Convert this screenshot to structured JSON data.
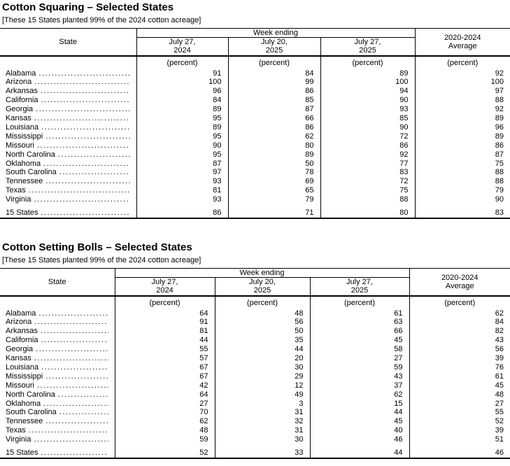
{
  "page": {
    "background_color": "#ffffff",
    "text_color": "#000000"
  },
  "tables": [
    {
      "title": "Cotton Squaring – Selected States",
      "note": "[These 15 States planted 99% of the 2024 cotton acreage]",
      "state_header": "State",
      "group_header": "Week ending",
      "columns": [
        "July 27,\n2024",
        "July 20,\n2025",
        "July 27,\n2025"
      ],
      "avg_header": "2020-2024\nAverage",
      "unit": "(percent)",
      "rows": [
        {
          "state": "Alabama",
          "values": [
            91,
            84,
            89,
            92
          ]
        },
        {
          "state": "Arizona",
          "values": [
            100,
            99,
            100,
            100
          ]
        },
        {
          "state": "Arkansas",
          "values": [
            96,
            86,
            94,
            97
          ]
        },
        {
          "state": "California",
          "values": [
            84,
            85,
            90,
            88
          ]
        },
        {
          "state": "Georgia",
          "values": [
            89,
            87,
            93,
            92
          ]
        },
        {
          "state": "Kansas",
          "values": [
            95,
            66,
            85,
            89
          ]
        },
        {
          "state": "Louisiana",
          "values": [
            89,
            86,
            90,
            96
          ]
        },
        {
          "state": "Mississippi",
          "values": [
            95,
            62,
            72,
            89
          ]
        },
        {
          "state": "Missouri",
          "values": [
            90,
            80,
            86,
            86
          ]
        },
        {
          "state": "North Carolina",
          "values": [
            95,
            89,
            92,
            87
          ]
        },
        {
          "state": "Oklahoma",
          "values": [
            87,
            50,
            77,
            75
          ]
        },
        {
          "state": "South Carolina",
          "values": [
            97,
            78,
            83,
            88
          ]
        },
        {
          "state": "Tennessee",
          "values": [
            93,
            69,
            72,
            88
          ]
        },
        {
          "state": "Texas",
          "values": [
            81,
            65,
            75,
            79
          ]
        },
        {
          "state": "Virginia",
          "values": [
            93,
            79,
            88,
            90
          ]
        }
      ],
      "total": {
        "state": "15 States",
        "values": [
          86,
          71,
          80,
          83
        ]
      }
    },
    {
      "title": "Cotton Setting Bolls – Selected States",
      "note": "[These 15 States planted 99% of the 2024 cotton acreage]",
      "state_header": "State",
      "group_header": "Week ending",
      "columns": [
        "July 27,\n2024",
        "July 20,\n2025",
        "July 27,\n2025"
      ],
      "avg_header": "2020-2024\nAverage",
      "unit": "(percent)",
      "rows": [
        {
          "state": "Alabama",
          "values": [
            64,
            48,
            61,
            62
          ]
        },
        {
          "state": "Arizona",
          "values": [
            91,
            56,
            63,
            84
          ]
        },
        {
          "state": "Arkansas",
          "values": [
            81,
            50,
            66,
            82
          ]
        },
        {
          "state": "California",
          "values": [
            44,
            35,
            45,
            43
          ]
        },
        {
          "state": "Georgia",
          "values": [
            55,
            44,
            58,
            56
          ]
        },
        {
          "state": "Kansas",
          "values": [
            57,
            20,
            27,
            39
          ]
        },
        {
          "state": "Louisiana",
          "values": [
            67,
            30,
            59,
            76
          ]
        },
        {
          "state": "Mississippi",
          "values": [
            67,
            29,
            43,
            61
          ]
        },
        {
          "state": "Missouri",
          "values": [
            42,
            12,
            37,
            45
          ]
        },
        {
          "state": "North Carolina",
          "values": [
            64,
            49,
            62,
            48
          ]
        },
        {
          "state": "Oklahoma",
          "values": [
            27,
            3,
            15,
            27
          ]
        },
        {
          "state": "South Carolina",
          "values": [
            70,
            31,
            44,
            55
          ]
        },
        {
          "state": "Tennessee",
          "values": [
            62,
            32,
            45,
            52
          ]
        },
        {
          "state": "Texas",
          "values": [
            48,
            31,
            40,
            39
          ]
        },
        {
          "state": "Virginia",
          "values": [
            59,
            30,
            46,
            51
          ]
        }
      ],
      "total": {
        "state": "15 States",
        "values": [
          52,
          33,
          44,
          46
        ]
      }
    }
  ]
}
